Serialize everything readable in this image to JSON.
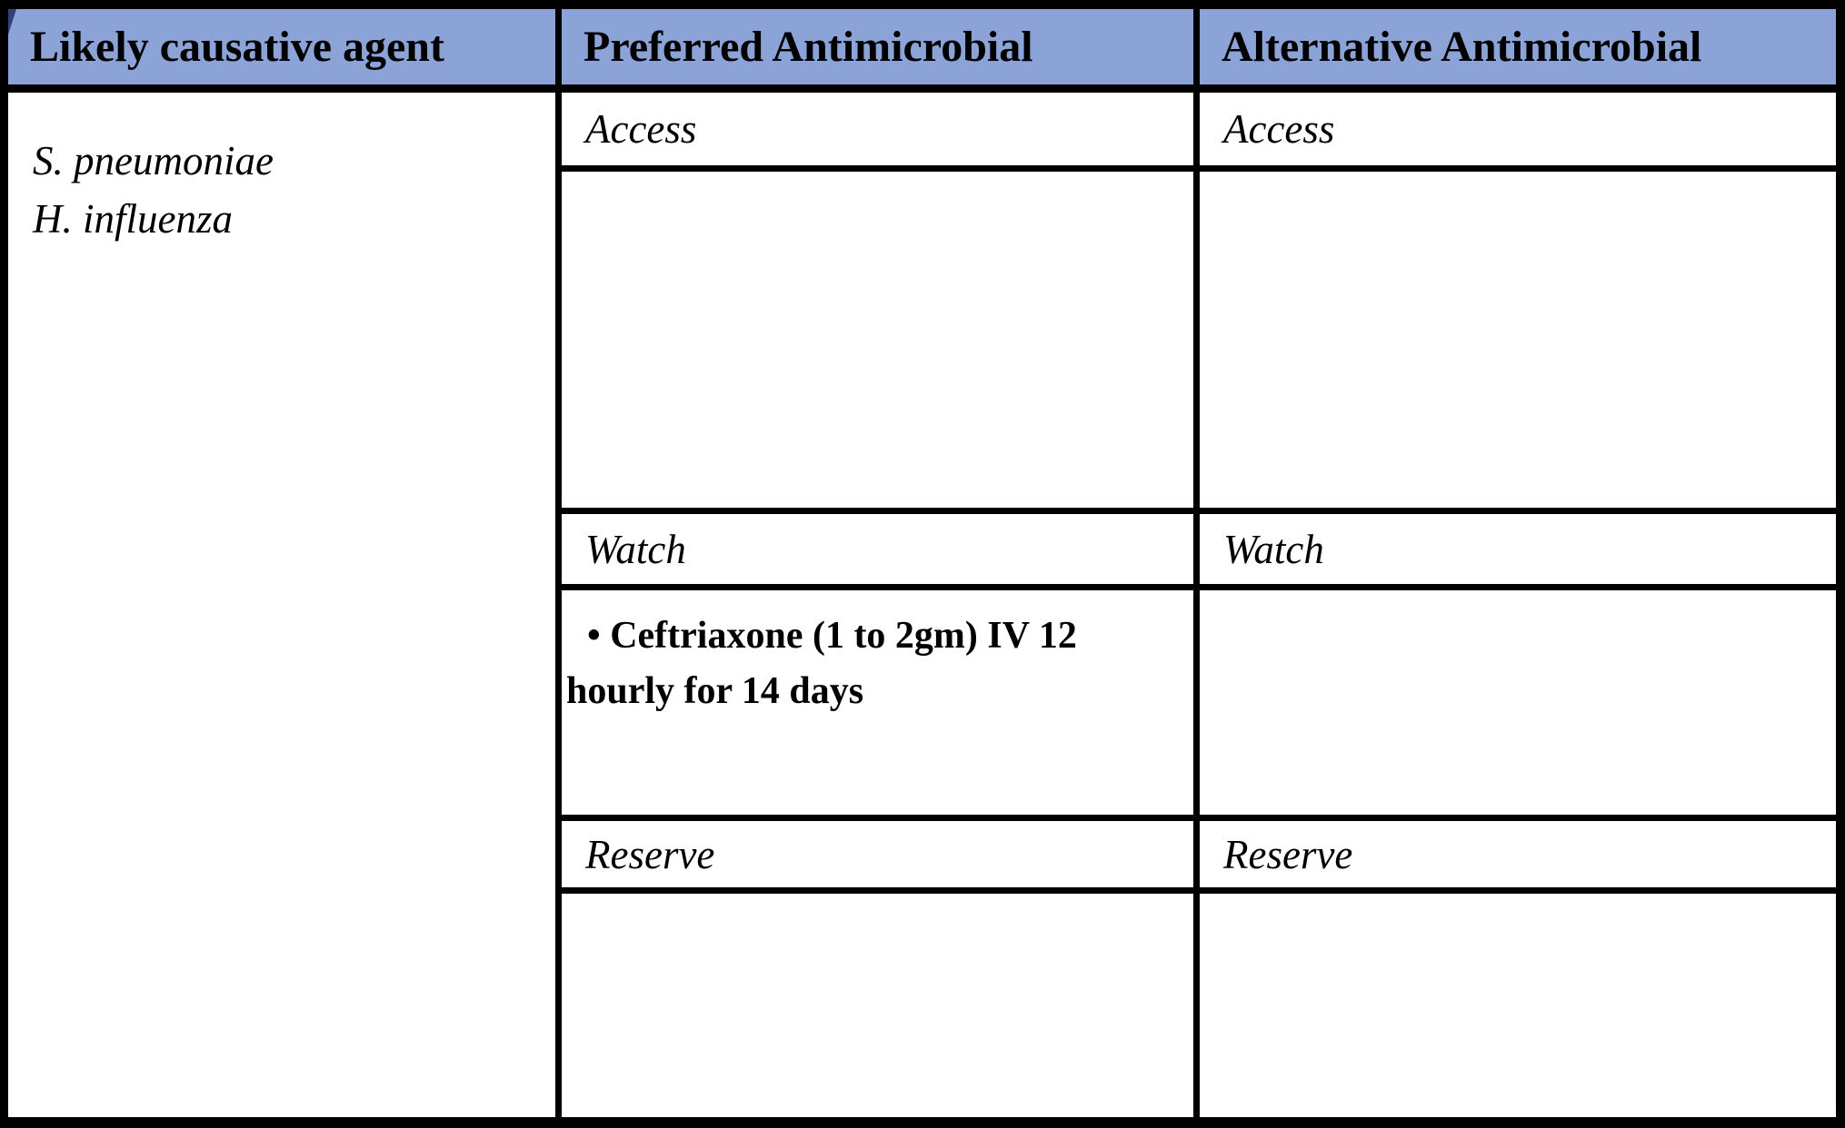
{
  "colors": {
    "header_bg": "#8CA3D8",
    "border": "#000000",
    "text": "#000000"
  },
  "table": {
    "columns": [
      {
        "label": "Likely causative agent"
      },
      {
        "label": "Preferred Antimicrobial"
      },
      {
        "label": "Alternative Antimicrobial"
      }
    ],
    "causative_agent": {
      "line1": "S. pneumoniae",
      "line2": "H. influenza"
    },
    "preferred": {
      "access_label": "Access",
      "access_content": "",
      "watch_label": "Watch",
      "watch_content": "• Ceftriaxone (1 to 2gm) IV 12 hourly for 14 days",
      "reserve_label": "Reserve",
      "reserve_content": ""
    },
    "alternative": {
      "access_label": "Access",
      "access_content": "",
      "watch_label": "Watch",
      "watch_content": "",
      "reserve_label": "Reserve",
      "reserve_content": ""
    }
  }
}
